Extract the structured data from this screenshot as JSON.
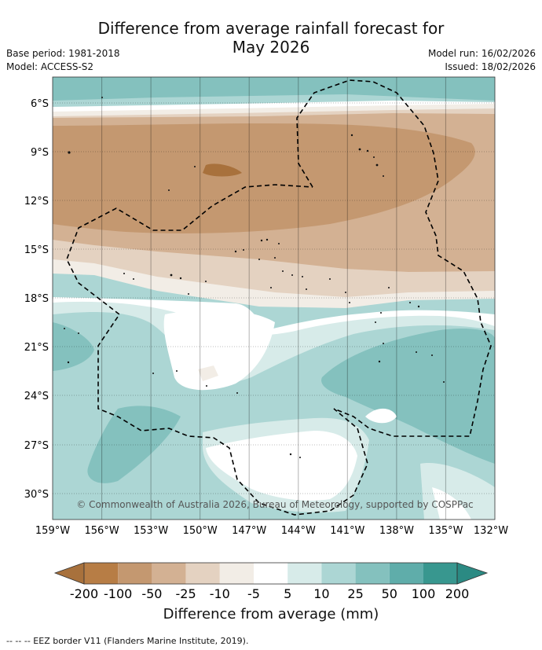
{
  "header": {
    "title_line1": "Difference from average rainfall forecast for",
    "title_line2": "May 2026",
    "base_period": "Base period: 1981-2018",
    "model": "Model: ACCESS-S2",
    "model_run": "Model run: 16/02/2026",
    "issued": "Issued: 18/02/2026"
  },
  "map": {
    "lat_labels": [
      "6°S",
      "9°S",
      "12°S",
      "15°S",
      "18°S",
      "21°S",
      "24°S",
      "27°S",
      "30°S"
    ],
    "lon_labels": [
      "159°W",
      "156°W",
      "153°W",
      "150°W",
      "147°W",
      "144°W",
      "141°W",
      "138°W",
      "135°W",
      "132°W"
    ],
    "copyright": "© Commonwealth of Australia 2026, Bureau of Meteorology, supported by COSPPac"
  },
  "legend": {
    "title": "Difference from average (mm)",
    "ticks": [
      "-200",
      "-100",
      "-50",
      "-25",
      "-10",
      "-5",
      "5",
      "10",
      "25",
      "50",
      "100",
      "200"
    ],
    "colors": [
      "#a8713c",
      "#b77d45",
      "#c49870",
      "#d3b193",
      "#e4d2c1",
      "#f2ede6",
      "#ffffff",
      "#d7ebe9",
      "#acd6d4",
      "#84c1be",
      "#5fadaa",
      "#38978f",
      "#2b8a83"
    ]
  },
  "footnote": "--  --  -- EEZ border V11 (Flanders Marine Institute, 2019)."
}
